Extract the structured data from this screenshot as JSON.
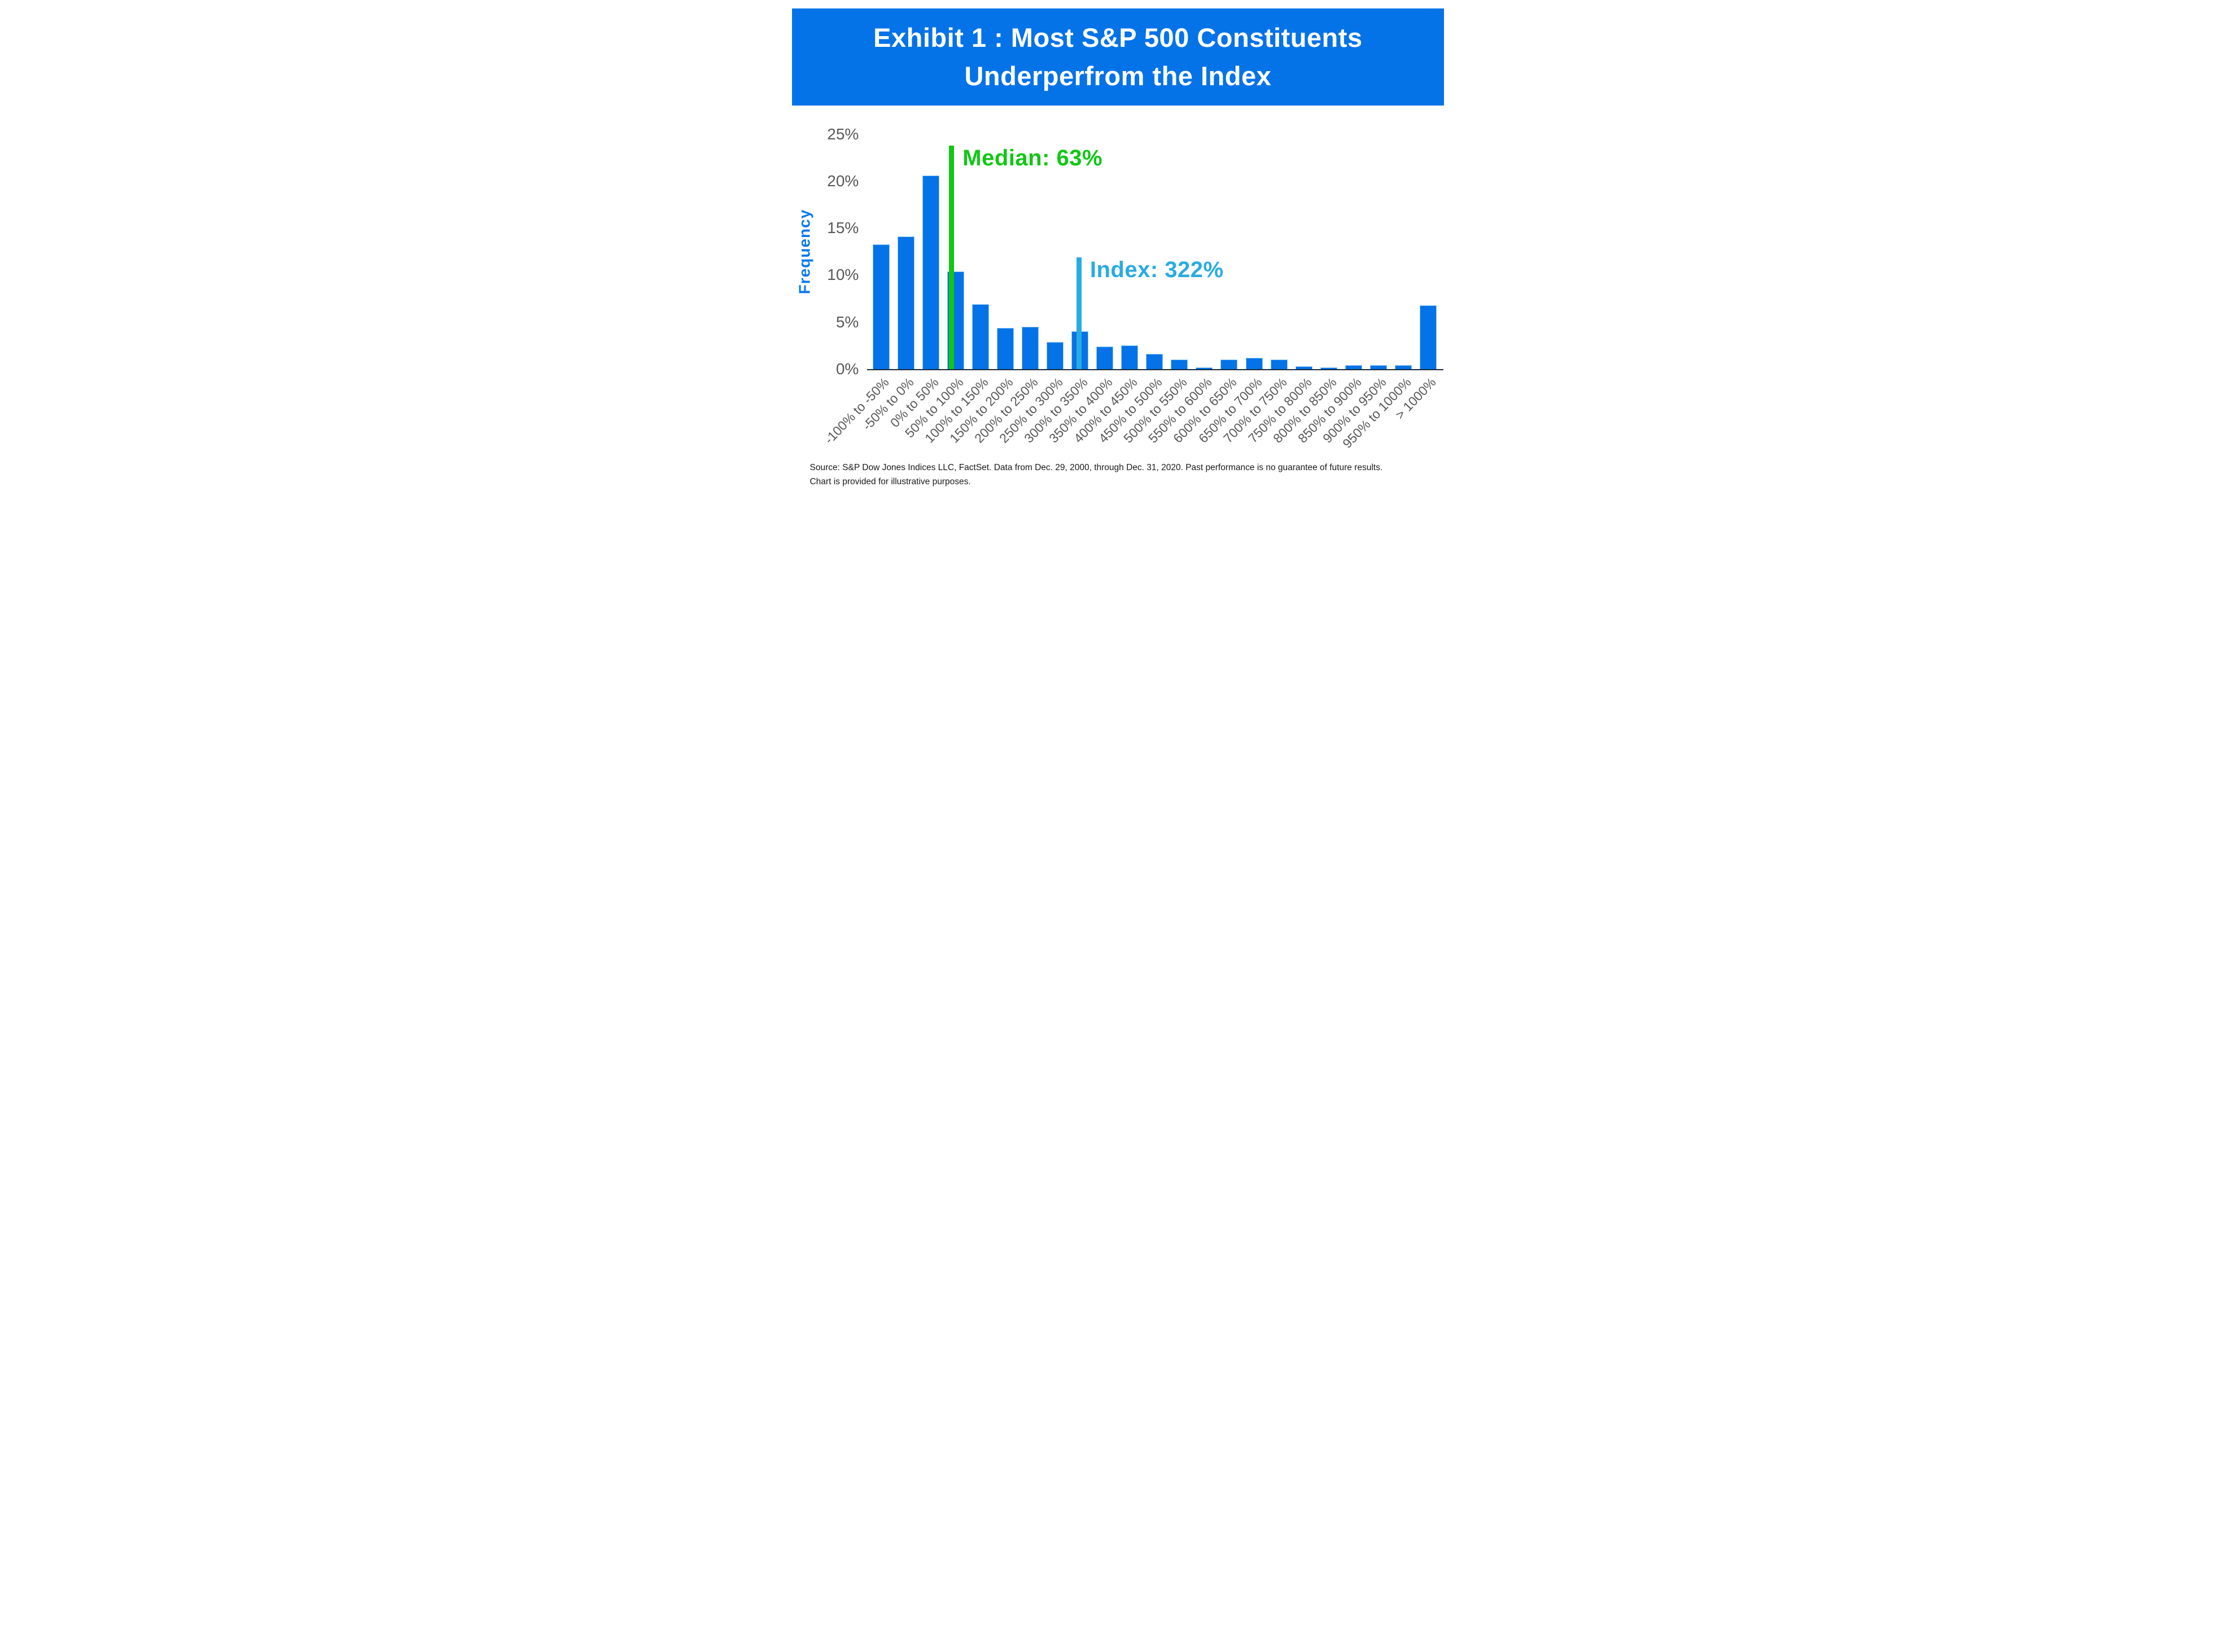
{
  "header": {
    "title_line1": "Exhibit 1 : Most S&P 500 Constituents",
    "title_line2": "Underperfrom the Index",
    "background_color": "#0573E8",
    "text_color": "#FFFFFF"
  },
  "chart_data": {
    "type": "bar",
    "title": "Exhibit 1 : Most S&P 500 Constituents Underperfrom the Index",
    "ylabel": "Frequency",
    "xlabel": "",
    "ylim": [
      0,
      25
    ],
    "grid": false,
    "bar_color": "#0573E8",
    "ylabel_color": "#0A79EA",
    "tick_color": "#58595B",
    "axis_line_color": "#1B2B3D",
    "ytick_labels": [
      "25%",
      "20%",
      "15%",
      "10%",
      "5%",
      "0%"
    ],
    "ytick_values": [
      25,
      20,
      15,
      10,
      5,
      0
    ],
    "categories": [
      "-100% to -50%",
      "-50% to 0%",
      "0% to 50%",
      "50% to 100%",
      "100% to 150%",
      "150% to 200%",
      "200% to 250%",
      "250% to 300%",
      "300% to 350%",
      "350% to 400%",
      "400% to 450%",
      "450% to 500%",
      "500% to 550%",
      "550% to 600%",
      "600% to 650%",
      "650% to 700%",
      "700% to 750%",
      "750% to 800%",
      "800% to 850%",
      "850% to 900%",
      "900% to 950%",
      "950% to 1000%",
      "> 1000%"
    ],
    "values": [
      13.3,
      14.1,
      20.6,
      10.4,
      6.9,
      4.4,
      4.5,
      2.9,
      4.0,
      2.4,
      2.5,
      1.6,
      1.0,
      0.2,
      1.0,
      1.2,
      1.0,
      0.3,
      0.2,
      0.4,
      0.4,
      0.4,
      6.8
    ],
    "bin_start": -100,
    "bin_width": 50,
    "annotations": [
      {
        "name": "median",
        "label": "Median: 63%",
        "value": 63,
        "color": "#10C713",
        "line_top_frequency": 23.8
      },
      {
        "name": "index",
        "label": "Index: 322%",
        "value": 322,
        "color": "#29ABE2",
        "line_top_frequency": 11.9
      }
    ],
    "legend": null
  },
  "footer": {
    "source_line1": "Source: S&P Dow Jones Indices LLC, FactSet. Data from Dec. 29, 2000, through Dec. 31, 2020. Past performance is no guarantee of future results.",
    "source_line2": "Chart is provided for illustrative purposes."
  }
}
